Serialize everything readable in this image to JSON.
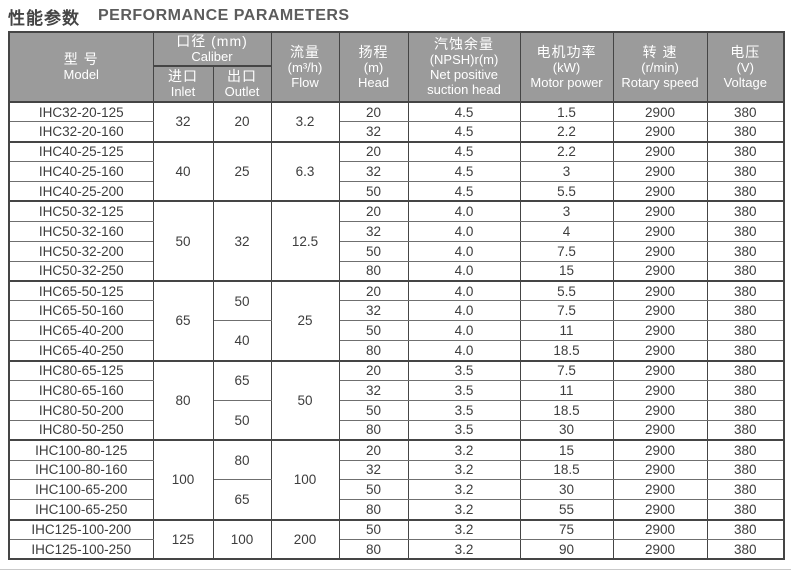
{
  "title": {
    "zh": "性能参数",
    "en": "PERFORMANCE PARAMETERS"
  },
  "colors": {
    "header_bg": "#9b9b9b",
    "header_text": "#ffffff",
    "body_text": "#3d3d3d",
    "grid_line": "#454545"
  },
  "header": {
    "model_zh": "型 号",
    "model_en": "Model",
    "caliber_zh": "口径 (mm)",
    "caliber_en": "Caliber",
    "inlet_zh": "进口",
    "inlet_en": "Inlet",
    "outlet_zh": "出口",
    "outlet_en": "Outlet",
    "flow_zh": "流量",
    "flow_unit": "(m³/h)",
    "flow_en": "Flow",
    "head_zh": "扬程",
    "head_unit": "(m)",
    "head_en": "Head",
    "npsh_zh": "汽蚀余量",
    "npsh_unit": "(NPSH)r(m)",
    "npsh_en1": "Net positive",
    "npsh_en2": "suction head",
    "power_zh": "电机功率",
    "power_unit": "(kW)",
    "power_en": "Motor power",
    "speed_zh": "转 速",
    "speed_unit": "(r/min)",
    "speed_en": "Rotary speed",
    "voltage_zh": "电压",
    "voltage_unit": "(V)",
    "voltage_en": "Voltage"
  },
  "groups": [
    {
      "inlet": "32",
      "flow": "3.2",
      "subgroups": [
        {
          "outlet": "20",
          "rows": [
            {
              "model": "IHC32-20-125",
              "head": "20",
              "npsh": "4.5",
              "power": "1.5",
              "speed": "2900",
              "voltage": "380"
            },
            {
              "model": "IHC32-20-160",
              "head": "32",
              "npsh": "4.5",
              "power": "2.2",
              "speed": "2900",
              "voltage": "380"
            }
          ]
        }
      ]
    },
    {
      "inlet": "40",
      "flow": "6.3",
      "subgroups": [
        {
          "outlet": "25",
          "rows": [
            {
              "model": "IHC40-25-125",
              "head": "20",
              "npsh": "4.5",
              "power": "2.2",
              "speed": "2900",
              "voltage": "380"
            },
            {
              "model": "IHC40-25-160",
              "head": "32",
              "npsh": "4.5",
              "power": "3",
              "speed": "2900",
              "voltage": "380"
            },
            {
              "model": "IHC40-25-200",
              "head": "50",
              "npsh": "4.5",
              "power": "5.5",
              "speed": "2900",
              "voltage": "380"
            }
          ]
        }
      ]
    },
    {
      "inlet": "50",
      "flow": "12.5",
      "subgroups": [
        {
          "outlet": "32",
          "rows": [
            {
              "model": "IHC50-32-125",
              "head": "20",
              "npsh": "4.0",
              "power": "3",
              "speed": "2900",
              "voltage": "380"
            },
            {
              "model": "IHC50-32-160",
              "head": "32",
              "npsh": "4.0",
              "power": "4",
              "speed": "2900",
              "voltage": "380"
            },
            {
              "model": "IHC50-32-200",
              "head": "50",
              "npsh": "4.0",
              "power": "7.5",
              "speed": "2900",
              "voltage": "380"
            },
            {
              "model": "IHC50-32-250",
              "head": "80",
              "npsh": "4.0",
              "power": "15",
              "speed": "2900",
              "voltage": "380"
            }
          ]
        }
      ]
    },
    {
      "inlet": "65",
      "flow": "25",
      "subgroups": [
        {
          "outlet": "50",
          "rows": [
            {
              "model": "IHC65-50-125",
              "head": "20",
              "npsh": "4.0",
              "power": "5.5",
              "speed": "2900",
              "voltage": "380"
            },
            {
              "model": "IHC65-50-160",
              "head": "32",
              "npsh": "4.0",
              "power": "7.5",
              "speed": "2900",
              "voltage": "380"
            }
          ]
        },
        {
          "outlet": "40",
          "rows": [
            {
              "model": "IHC65-40-200",
              "head": "50",
              "npsh": "4.0",
              "power": "11",
              "speed": "2900",
              "voltage": "380"
            },
            {
              "model": "IHC65-40-250",
              "head": "80",
              "npsh": "4.0",
              "power": "18.5",
              "speed": "2900",
              "voltage": "380"
            }
          ]
        }
      ]
    },
    {
      "inlet": "80",
      "flow": "50",
      "subgroups": [
        {
          "outlet": "65",
          "rows": [
            {
              "model": "IHC80-65-125",
              "head": "20",
              "npsh": "3.5",
              "power": "7.5",
              "speed": "2900",
              "voltage": "380"
            },
            {
              "model": "IHC80-65-160",
              "head": "32",
              "npsh": "3.5",
              "power": "11",
              "speed": "2900",
              "voltage": "380"
            }
          ]
        },
        {
          "outlet": "50",
          "rows": [
            {
              "model": "IHC80-50-200",
              "head": "50",
              "npsh": "3.5",
              "power": "18.5",
              "speed": "2900",
              "voltage": "380"
            },
            {
              "model": "IHC80-50-250",
              "head": "80",
              "npsh": "3.5",
              "power": "30",
              "speed": "2900",
              "voltage": "380"
            }
          ]
        }
      ]
    },
    {
      "inlet": "100",
      "flow": "100",
      "subgroups": [
        {
          "outlet": "80",
          "rows": [
            {
              "model": "IHC100-80-125",
              "head": "20",
              "npsh": "3.2",
              "power": "15",
              "speed": "2900",
              "voltage": "380"
            },
            {
              "model": "IHC100-80-160",
              "head": "32",
              "npsh": "3.2",
              "power": "18.5",
              "speed": "2900",
              "voltage": "380"
            }
          ]
        },
        {
          "outlet": "65",
          "rows": [
            {
              "model": "IHC100-65-200",
              "head": "50",
              "npsh": "3.2",
              "power": "30",
              "speed": "2900",
              "voltage": "380"
            },
            {
              "model": "IHC100-65-250",
              "head": "80",
              "npsh": "3.2",
              "power": "55",
              "speed": "2900",
              "voltage": "380"
            }
          ]
        }
      ]
    },
    {
      "inlet": "125",
      "flow": "200",
      "subgroups": [
        {
          "outlet": "100",
          "rows": [
            {
              "model": "IHC125-100-200",
              "head": "50",
              "npsh": "3.2",
              "power": "75",
              "speed": "2900",
              "voltage": "380"
            },
            {
              "model": "IHC125-100-250",
              "head": "80",
              "npsh": "3.2",
              "power": "90",
              "speed": "2900",
              "voltage": "380"
            }
          ]
        }
      ]
    }
  ]
}
